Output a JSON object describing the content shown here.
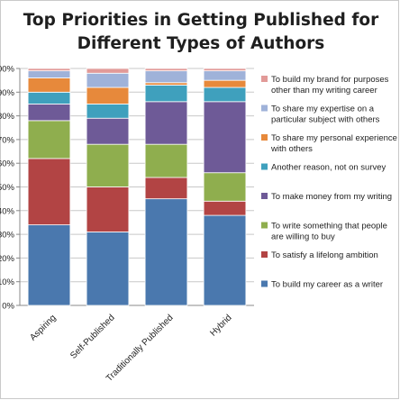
{
  "chart_data": {
    "type": "bar",
    "stacked": true,
    "title_lines": [
      "Top Priorities in Getting Published for",
      "Different Types of Authors"
    ],
    "ylim": [
      0,
      100
    ],
    "yticks": [
      "0%",
      "10%",
      "20%",
      "30%",
      "40%",
      "50%",
      "60%",
      "70%",
      "80%",
      "90%",
      "100%"
    ],
    "categories": [
      "Aspiring",
      "Self-Published",
      "Traditionally Published",
      "Hybrid"
    ],
    "legend_position": "right",
    "series": [
      {
        "name": "To build my career as a writer",
        "color": "#4a78ae",
        "values": [
          34,
          31,
          45,
          38
        ]
      },
      {
        "name": "To satisfy a lifelong ambition",
        "color": "#b24444",
        "values": [
          28,
          19,
          9,
          6
        ]
      },
      {
        "name": "To write something that people are willing to buy",
        "color": "#8fae4e",
        "values": [
          16,
          18,
          14,
          12
        ]
      },
      {
        "name": "To make money from my writing",
        "color": "#6e5a97",
        "values": [
          7,
          11,
          18,
          30
        ]
      },
      {
        "name": "Another reason, not on survey",
        "color": "#3fa0bd",
        "values": [
          5,
          6,
          7,
          6
        ]
      },
      {
        "name": "To share my personal experience with others",
        "color": "#e7893b",
        "values": [
          6,
          7,
          1,
          3
        ]
      },
      {
        "name": "To share my expertise on a particular subject with others",
        "color": "#9fb2d9",
        "values": [
          3,
          6,
          5,
          4
        ]
      },
      {
        "name": "To build my brand for purposes other than my writing career",
        "color": "#e29a98",
        "values": [
          1,
          2,
          1,
          1
        ]
      }
    ]
  }
}
